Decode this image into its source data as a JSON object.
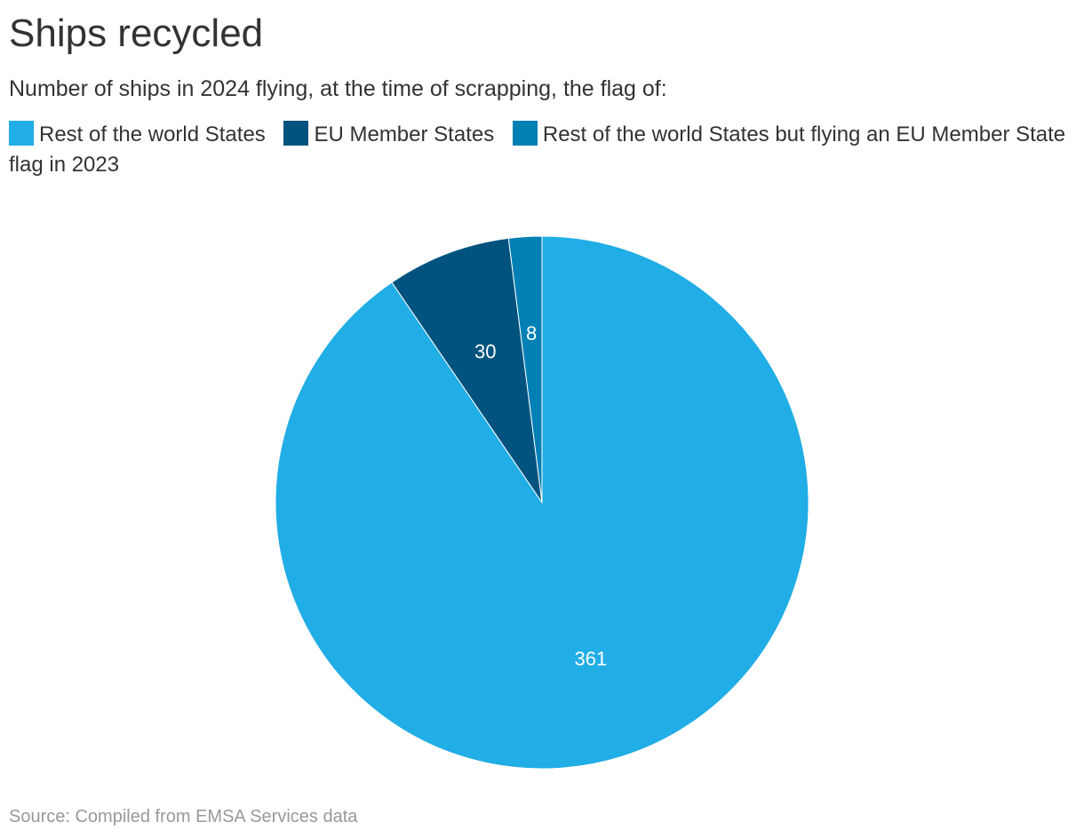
{
  "title": "Ships recycled",
  "subtitle": "Number of ships in 2024 flying, at the time of scrapping, the flag of:",
  "source": "Source: Compiled from EMSA Services data",
  "chart_data": {
    "type": "pie",
    "title": "Ships recycled",
    "subtitle": "Number of ships in 2024 flying, at the time of scrapping, the flag of:",
    "legend_position": "top",
    "slices": [
      {
        "label": "Rest of the world States",
        "value": 361,
        "color": "#21ade5"
      },
      {
        "label": "EU Member States",
        "value": 30,
        "color": "#00537f"
      },
      {
        "label": "Rest of the world States but flying an EU Member State flag in 2023",
        "value": 8,
        "color": "#0180b5"
      }
    ]
  }
}
